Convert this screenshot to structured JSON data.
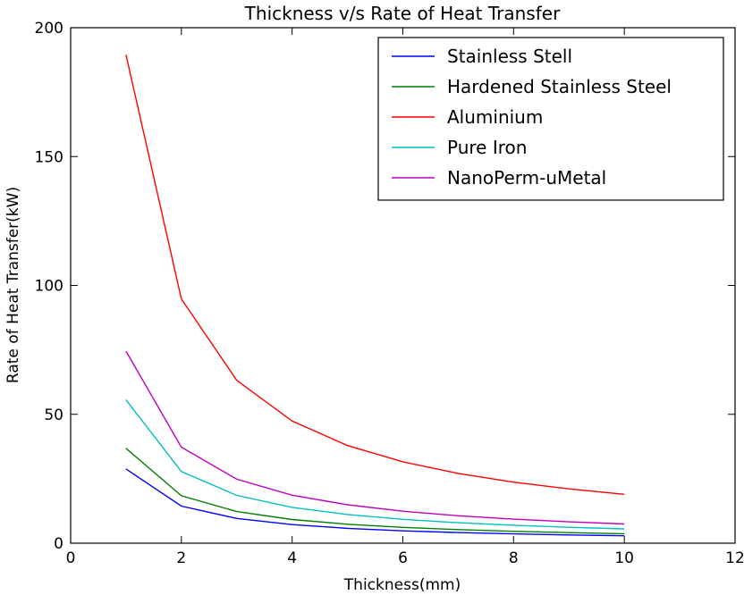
{
  "chart_data": {
    "type": "line",
    "title": "Thickness v/s Rate of Heat Transfer",
    "xlabel": "Thickness(mm)",
    "ylabel": "Rate of Heat Transfer(kW)",
    "xlim": [
      0,
      12
    ],
    "ylim": [
      0,
      200
    ],
    "xticks": [
      0,
      2,
      4,
      6,
      8,
      10,
      12
    ],
    "yticks": [
      0,
      50,
      100,
      150,
      200
    ],
    "grid": false,
    "legend_position": "top-right",
    "x": [
      1,
      2,
      3,
      4,
      5,
      6,
      7,
      8,
      9,
      10
    ],
    "series": [
      {
        "name": "Stainless Stell",
        "color": "#0000ff",
        "values": [
          28.8,
          14.4,
          9.6,
          7.2,
          5.76,
          4.8,
          4.11,
          3.6,
          3.2,
          2.88
        ]
      },
      {
        "name": "Hardened Stainless Steel",
        "color": "#008000",
        "values": [
          36.8,
          18.4,
          12.27,
          9.2,
          7.36,
          6.13,
          5.26,
          4.6,
          4.09,
          3.68
        ]
      },
      {
        "name": "Aluminium",
        "color": "#ff0000",
        "values": [
          189.5,
          94.75,
          63.17,
          47.38,
          37.9,
          31.58,
          27.07,
          23.69,
          21.06,
          18.95
        ]
      },
      {
        "name": "Pure Iron",
        "color": "#00bfbf",
        "values": [
          55.6,
          27.8,
          18.53,
          13.9,
          11.12,
          9.27,
          7.94,
          6.95,
          6.18,
          5.56
        ]
      },
      {
        "name": "NanoPerm-uMetal",
        "color": "#bf00bf",
        "values": [
          74.5,
          37.25,
          24.83,
          18.63,
          14.9,
          12.42,
          10.64,
          9.31,
          8.28,
          7.45
        ]
      }
    ]
  }
}
